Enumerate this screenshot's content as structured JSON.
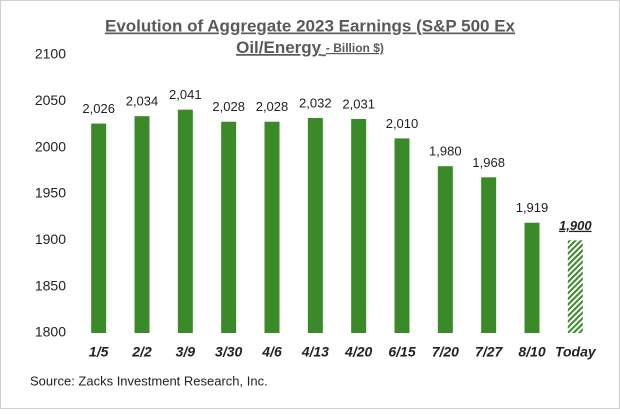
{
  "chart_data": {
    "type": "bar",
    "title": [
      "Evolution of Aggregate 2023 Earnings (S&P 500 Ex",
      "Oil/Energy"
    ],
    "title_note": "- Billion $)",
    "categories": [
      "1/5",
      "2/2",
      "3/9",
      "3/30",
      "4/6",
      "4/13",
      "4/20",
      "6/15",
      "7/20",
      "7/27",
      "8/10",
      "Today"
    ],
    "values": [
      2026,
      2034,
      2041,
      2028,
      2028,
      2032,
      2031,
      2010,
      1980,
      1968,
      1919,
      1900
    ],
    "value_labels": [
      "2,026",
      "2,034",
      "2,041",
      "2,028",
      "2,028",
      "2,032",
      "2,031",
      "2,010",
      "1,980",
      "1,968",
      "1,919",
      "1,900"
    ],
    "color": "#3a8a2a",
    "ylim": [
      1800,
      2100
    ],
    "yticks": [
      1800,
      1850,
      1900,
      1950,
      2000,
      2050,
      2100
    ],
    "grid": false,
    "source": "Source: Zacks Investment Research, Inc."
  }
}
